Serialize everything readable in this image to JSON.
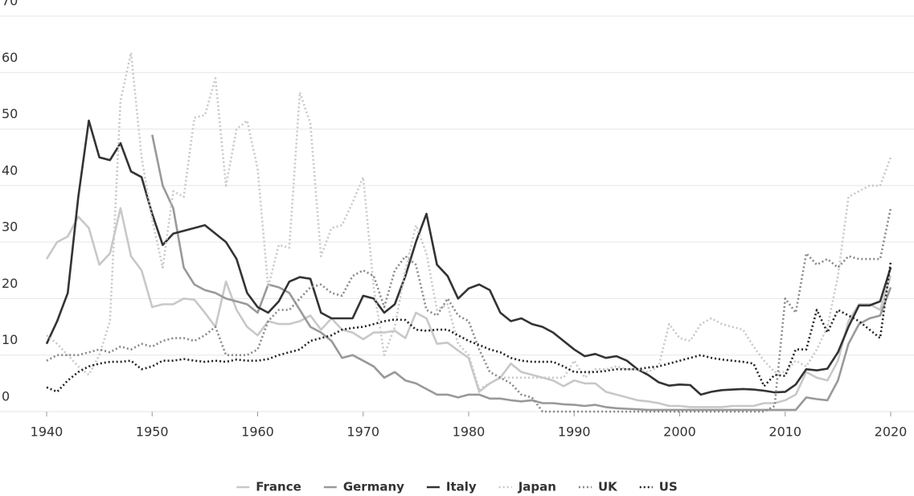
{
  "chart_data": {
    "type": "line",
    "x": [
      1940,
      1941,
      1942,
      1943,
      1944,
      1945,
      1946,
      1947,
      1948,
      1949,
      1950,
      1951,
      1952,
      1953,
      1954,
      1955,
      1956,
      1957,
      1958,
      1959,
      1960,
      1961,
      1962,
      1963,
      1964,
      1965,
      1966,
      1967,
      1968,
      1969,
      1970,
      1971,
      1972,
      1973,
      1974,
      1975,
      1976,
      1977,
      1978,
      1979,
      1980,
      1981,
      1982,
      1983,
      1984,
      1985,
      1986,
      1987,
      1988,
      1989,
      1990,
      1991,
      1992,
      1993,
      1994,
      1995,
      1996,
      1997,
      1998,
      1999,
      2000,
      2001,
      2002,
      2003,
      2004,
      2005,
      2006,
      2007,
      2008,
      2009,
      2010,
      2011,
      2012,
      2013,
      2014,
      2015,
      2016,
      2017,
      2018,
      2019,
      2020
    ],
    "xlim": [
      1940,
      2020
    ],
    "xticks": [
      1940,
      1950,
      1960,
      1970,
      1980,
      1990,
      2000,
      2010,
      2020
    ],
    "ylim": [
      0,
      70
    ],
    "yticks": [
      0,
      10,
      20,
      30,
      40,
      50,
      60,
      70
    ],
    "grid": true,
    "legend": "bottom",
    "series": [
      {
        "name": "France",
        "color": "#c8c8c8",
        "style": "solid",
        "values": [
          27,
          30,
          31,
          34.5,
          32.5,
          26,
          28,
          36,
          27.5,
          25,
          18.5,
          19,
          19,
          20,
          19.8,
          17.5,
          15,
          23,
          18,
          15,
          13.5,
          16,
          15.5,
          15.5,
          16,
          17,
          14.5,
          16.5,
          14.5,
          14,
          12.8,
          14,
          14,
          14.3,
          13,
          17.5,
          16.5,
          12,
          12.2,
          10.8,
          9.5,
          3.5,
          5,
          6,
          8.5,
          7,
          6.5,
          6,
          5.5,
          4.5,
          5.5,
          5,
          5,
          3.5,
          3,
          2.5,
          2,
          1.8,
          1.5,
          1,
          1,
          0.8,
          0.8,
          0.8,
          0.8,
          1,
          1,
          1,
          1.5,
          1.5,
          2,
          3,
          7,
          6,
          5.5,
          9,
          16,
          19,
          19,
          18,
          24
        ]
      },
      {
        "name": "Germany",
        "color": "#999999",
        "style": "solid",
        "values": [
          null,
          null,
          null,
          null,
          null,
          null,
          null,
          null,
          null,
          null,
          49,
          40,
          36,
          25.5,
          22.5,
          21.5,
          21,
          20,
          19.5,
          19,
          17.5,
          22.5,
          22,
          21,
          18,
          15,
          14,
          12.5,
          9.5,
          10,
          9,
          8,
          6,
          7,
          5.5,
          5,
          4,
          3,
          3,
          2.5,
          3,
          3,
          2.3,
          2.3,
          2,
          1.8,
          2,
          1.5,
          1.5,
          1.3,
          1.2,
          1,
          1.2,
          0.8,
          0.6,
          0.5,
          0.4,
          0.3,
          0.3,
          0.3,
          0.3,
          0.3,
          0.3,
          0.3,
          0.3,
          0.3,
          0.3,
          0.3,
          0.3,
          0.3,
          0.3,
          0.3,
          2.5,
          2.2,
          2,
          5.5,
          12,
          15.5,
          16.5,
          17,
          22
        ]
      },
      {
        "name": "Italy",
        "color": "#333333",
        "style": "solid",
        "values": [
          12,
          16,
          21,
          38,
          51.5,
          45,
          44.5,
          47.5,
          42.5,
          41.5,
          35,
          29.5,
          31.5,
          32,
          32.5,
          33,
          31.5,
          30,
          27,
          21,
          18.5,
          17.5,
          19.5,
          23,
          23.8,
          23.5,
          17.5,
          16.5,
          16.5,
          16.5,
          20.5,
          20,
          17.5,
          19,
          24,
          30,
          35,
          26,
          24,
          20,
          21.8,
          22.5,
          21.5,
          17.5,
          16,
          16.5,
          15.5,
          15,
          14,
          12.5,
          11,
          9.8,
          10.2,
          9.5,
          9.8,
          9,
          7.5,
          6.5,
          5.2,
          4.6,
          4.8,
          4.7,
          3,
          3.5,
          3.8,
          3.9,
          4,
          3.9,
          3.7,
          3.4,
          3.5,
          4.8,
          7.5,
          7.3,
          7.6,
          10.5,
          15,
          18.8,
          18.8,
          19.5,
          25.5
        ]
      },
      {
        "name": "Japan",
        "color": "#c8c8c8",
        "style": "dotted",
        "values": [
          13.5,
          12,
          10,
          8,
          6.5,
          10,
          16,
          55,
          63.5,
          45,
          34,
          25.5,
          39,
          38,
          52,
          52.5,
          59,
          40,
          50,
          51.5,
          43,
          22,
          29.5,
          29,
          56.5,
          51,
          27.5,
          32.5,
          33,
          37,
          41.5,
          22,
          10,
          15,
          25,
          33,
          28,
          18,
          19,
          12,
          10,
          4,
          5,
          6,
          6,
          6,
          6,
          6,
          6,
          6,
          9,
          6,
          7.5,
          7.5,
          8,
          7.5,
          7.5,
          7,
          8,
          15.5,
          13,
          12.5,
          15.5,
          16.5,
          15.5,
          15,
          14.5,
          11.5,
          9,
          7,
          7,
          9,
          8,
          11,
          15,
          24,
          38,
          39,
          40,
          40,
          45
        ]
      },
      {
        "name": "UK",
        "color": "#888888",
        "style": "dotted",
        "values": [
          9,
          10,
          10,
          10,
          10.5,
          11,
          10.5,
          11.5,
          11,
          12,
          11.5,
          12.5,
          13,
          13,
          12.5,
          13.5,
          15,
          10,
          10,
          10,
          11,
          16,
          18,
          18,
          20,
          22,
          22.5,
          21,
          20.5,
          24,
          25,
          24,
          18.5,
          25,
          27.5,
          26,
          18,
          17,
          20,
          17,
          16,
          11,
          7,
          6,
          5,
          3,
          2.5,
          0,
          0,
          0,
          0,
          0,
          0,
          0,
          0,
          0,
          0,
          0,
          0,
          0,
          0,
          0,
          0,
          0,
          0,
          0,
          0,
          0,
          0,
          1,
          20,
          17.5,
          28,
          26,
          27,
          25.5,
          27.5,
          27,
          27,
          27,
          36
        ]
      },
      {
        "name": "US",
        "color": "#222222",
        "style": "dotted",
        "values": [
          4.3,
          3.5,
          5.5,
          7,
          8,
          8.5,
          8.8,
          8.8,
          9,
          7.5,
          8,
          9,
          9,
          9.3,
          9,
          8.8,
          9,
          8.8,
          9.2,
          9,
          9,
          9.3,
          10,
          10.5,
          11,
          12.5,
          13,
          13.5,
          14.5,
          14.8,
          15,
          15.5,
          16,
          16.3,
          16.2,
          14.5,
          14.3,
          14.5,
          14.5,
          13.5,
          12.5,
          11.8,
          11,
          10.5,
          9.5,
          9,
          8.8,
          8.8,
          8.8,
          8,
          7,
          7,
          7,
          7.2,
          7.5,
          7.5,
          7.5,
          7.8,
          8,
          8.5,
          9,
          9.5,
          10,
          9.5,
          9.2,
          9,
          8.8,
          8.5,
          4.5,
          6.5,
          6.3,
          11,
          11,
          18,
          14,
          18,
          17,
          16,
          14.5,
          13,
          26.5
        ]
      }
    ]
  }
}
